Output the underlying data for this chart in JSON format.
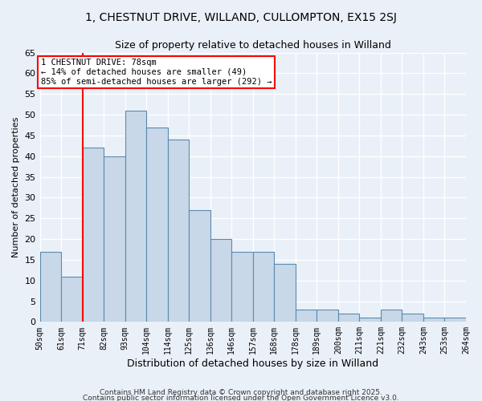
{
  "title1": "1, CHESTNUT DRIVE, WILLAND, CULLOMPTON, EX15 2SJ",
  "title2": "Size of property relative to detached houses in Willand",
  "xlabel": "Distribution of detached houses by size in Willand",
  "ylabel": "Number of detached properties",
  "bin_labels": [
    "50sqm",
    "61sqm",
    "71sqm",
    "82sqm",
    "93sqm",
    "104sqm",
    "114sqm",
    "125sqm",
    "136sqm",
    "146sqm",
    "157sqm",
    "168sqm",
    "178sqm",
    "189sqm",
    "200sqm",
    "211sqm",
    "221sqm",
    "232sqm",
    "243sqm",
    "253sqm",
    "264sqm"
  ],
  "bar_heights": [
    17,
    11,
    42,
    40,
    51,
    47,
    44,
    27,
    20,
    17,
    17,
    14,
    3,
    3,
    2,
    1,
    3,
    2,
    1,
    1
  ],
  "bar_color": "#c8d8e8",
  "bar_edge_color": "#5a8ab0",
  "vline_color": "red",
  "annotation_text": "1 CHESTNUT DRIVE: 78sqm\n← 14% of detached houses are smaller (49)\n85% of semi-detached houses are larger (292) →",
  "annotation_box_color": "white",
  "annotation_box_edge": "red",
  "ylim": [
    0,
    65
  ],
  "yticks": [
    0,
    5,
    10,
    15,
    20,
    25,
    30,
    35,
    40,
    45,
    50,
    55,
    60,
    65
  ],
  "background_color": "#eaf0f8",
  "plot_bg_color": "#eaf0f8",
  "footer1": "Contains HM Land Registry data © Crown copyright and database right 2025.",
  "footer2": "Contains public sector information licensed under the Open Government Licence v3.0.",
  "title_fontsize": 10,
  "subtitle_fontsize": 9
}
